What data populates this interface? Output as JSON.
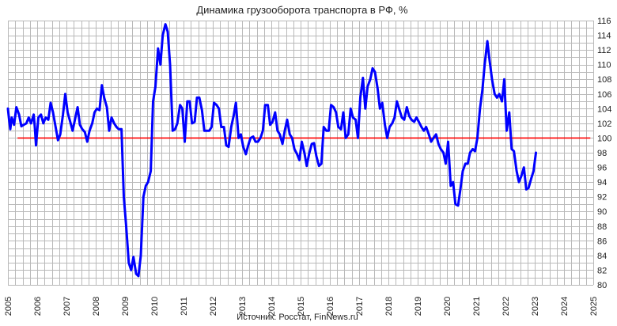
{
  "chart_data": {
    "type": "line",
    "title": "Динамика грузооборота транспорта в РФ, %",
    "source": "Источник: Росстат, FinNews.ru",
    "xlabel": "",
    "ylabel": "",
    "xlim": [
      2005,
      2025
    ],
    "ylim": [
      80,
      116
    ],
    "x_ticks": [
      "2005",
      "2006",
      "2007",
      "2008",
      "2009",
      "2010",
      "2011",
      "2012",
      "2013",
      "2014",
      "2015",
      "2016",
      "2017",
      "2018",
      "2019",
      "2020",
      "2021",
      "2022",
      "2023",
      "2024",
      "2025"
    ],
    "y_ticks": [
      "80",
      "82",
      "84",
      "86",
      "88",
      "90",
      "92",
      "94",
      "96",
      "98",
      "100",
      "102",
      "104",
      "106",
      "108",
      "110",
      "112",
      "114",
      "116"
    ],
    "grid": true,
    "colors": {
      "series": "#0000ff",
      "reference": "#ff0000"
    },
    "reference_line": {
      "y": 100,
      "x_start": 2005.33,
      "x_end": 2024.9
    },
    "series": [
      {
        "points": [
          [
            2005.0,
            104.0
          ],
          [
            2005.04,
            102.5
          ],
          [
            2005.08,
            101.2
          ],
          [
            2005.13,
            102.8
          ],
          [
            2005.21,
            101.8
          ],
          [
            2005.29,
            104.2
          ],
          [
            2005.38,
            103.2
          ],
          [
            2005.46,
            101.6
          ],
          [
            2005.54,
            101.8
          ],
          [
            2005.63,
            102.0
          ],
          [
            2005.71,
            102.8
          ],
          [
            2005.79,
            102.0
          ],
          [
            2005.88,
            103.2
          ],
          [
            2005.92,
            101.5
          ],
          [
            2005.96,
            99.0
          ],
          [
            2006.04,
            102.8
          ],
          [
            2006.13,
            103.2
          ],
          [
            2006.21,
            102.0
          ],
          [
            2006.29,
            102.8
          ],
          [
            2006.38,
            102.5
          ],
          [
            2006.46,
            104.8
          ],
          [
            2006.54,
            103.5
          ],
          [
            2006.63,
            101.5
          ],
          [
            2006.71,
            99.7
          ],
          [
            2006.79,
            100.5
          ],
          [
            2006.88,
            103.2
          ],
          [
            2006.96,
            106.0
          ],
          [
            2007.04,
            103.5
          ],
          [
            2007.13,
            102.2
          ],
          [
            2007.21,
            101.0
          ],
          [
            2007.29,
            102.5
          ],
          [
            2007.38,
            104.2
          ],
          [
            2007.46,
            101.8
          ],
          [
            2007.54,
            101.2
          ],
          [
            2007.63,
            100.8
          ],
          [
            2007.71,
            99.5
          ],
          [
            2007.79,
            101.0
          ],
          [
            2007.88,
            102.0
          ],
          [
            2007.96,
            103.5
          ],
          [
            2008.04,
            104.0
          ],
          [
            2008.13,
            103.8
          ],
          [
            2008.21,
            107.2
          ],
          [
            2008.29,
            105.5
          ],
          [
            2008.38,
            104.2
          ],
          [
            2008.46,
            101.0
          ],
          [
            2008.54,
            102.8
          ],
          [
            2008.63,
            102.0
          ],
          [
            2008.71,
            101.5
          ],
          [
            2008.79,
            101.2
          ],
          [
            2008.88,
            101.2
          ],
          [
            2008.96,
            92.0
          ],
          [
            2009.04,
            88.0
          ],
          [
            2009.13,
            83.0
          ],
          [
            2009.21,
            82.0
          ],
          [
            2009.29,
            83.8
          ],
          [
            2009.38,
            81.5
          ],
          [
            2009.46,
            81.2
          ],
          [
            2009.54,
            84.0
          ],
          [
            2009.63,
            92.0
          ],
          [
            2009.71,
            93.5
          ],
          [
            2009.79,
            94.0
          ],
          [
            2009.88,
            95.5
          ],
          [
            2009.96,
            105.0
          ],
          [
            2010.04,
            107.0
          ],
          [
            2010.13,
            112.2
          ],
          [
            2010.21,
            110.0
          ],
          [
            2010.29,
            114.0
          ],
          [
            2010.38,
            115.5
          ],
          [
            2010.46,
            114.5
          ],
          [
            2010.54,
            110.0
          ],
          [
            2010.63,
            101.0
          ],
          [
            2010.71,
            101.2
          ],
          [
            2010.79,
            102.0
          ],
          [
            2010.88,
            104.5
          ],
          [
            2010.96,
            104.0
          ],
          [
            2011.04,
            99.5
          ],
          [
            2011.13,
            105.0
          ],
          [
            2011.21,
            105.0
          ],
          [
            2011.29,
            102.0
          ],
          [
            2011.38,
            102.2
          ],
          [
            2011.46,
            105.5
          ],
          [
            2011.54,
            105.5
          ],
          [
            2011.63,
            103.8
          ],
          [
            2011.71,
            101.0
          ],
          [
            2011.79,
            101.0
          ],
          [
            2011.88,
            101.0
          ],
          [
            2011.96,
            101.5
          ],
          [
            2012.04,
            104.8
          ],
          [
            2012.13,
            104.5
          ],
          [
            2012.21,
            104.0
          ],
          [
            2012.29,
            101.5
          ],
          [
            2012.38,
            101.5
          ],
          [
            2012.46,
            99.0
          ],
          [
            2012.54,
            98.8
          ],
          [
            2012.63,
            101.5
          ],
          [
            2012.71,
            103.0
          ],
          [
            2012.79,
            104.8
          ],
          [
            2012.88,
            100.0
          ],
          [
            2012.96,
            100.5
          ],
          [
            2013.04,
            98.8
          ],
          [
            2013.13,
            97.8
          ],
          [
            2013.21,
            99.0
          ],
          [
            2013.29,
            100.0
          ],
          [
            2013.38,
            100.2
          ],
          [
            2013.46,
            99.5
          ],
          [
            2013.54,
            99.5
          ],
          [
            2013.63,
            100.0
          ],
          [
            2013.71,
            101.0
          ],
          [
            2013.79,
            104.5
          ],
          [
            2013.88,
            104.5
          ],
          [
            2013.96,
            101.8
          ],
          [
            2014.04,
            102.2
          ],
          [
            2014.13,
            103.5
          ],
          [
            2014.21,
            101.0
          ],
          [
            2014.29,
            100.5
          ],
          [
            2014.38,
            99.2
          ],
          [
            2014.46,
            101.0
          ],
          [
            2014.54,
            102.5
          ],
          [
            2014.63,
            100.5
          ],
          [
            2014.71,
            100.0
          ],
          [
            2014.79,
            98.5
          ],
          [
            2014.88,
            97.8
          ],
          [
            2014.96,
            97.0
          ],
          [
            2015.04,
            99.5
          ],
          [
            2015.13,
            98.0
          ],
          [
            2015.21,
            96.2
          ],
          [
            2015.29,
            97.8
          ],
          [
            2015.38,
            99.2
          ],
          [
            2015.46,
            99.3
          ],
          [
            2015.54,
            97.5
          ],
          [
            2015.63,
            96.2
          ],
          [
            2015.71,
            96.5
          ],
          [
            2015.79,
            101.5
          ],
          [
            2015.88,
            101.0
          ],
          [
            2015.96,
            101.0
          ],
          [
            2016.04,
            104.5
          ],
          [
            2016.13,
            104.2
          ],
          [
            2016.21,
            103.5
          ],
          [
            2016.29,
            101.5
          ],
          [
            2016.38,
            101.2
          ],
          [
            2016.46,
            103.5
          ],
          [
            2016.54,
            100.0
          ],
          [
            2016.63,
            100.5
          ],
          [
            2016.71,
            104.0
          ],
          [
            2016.79,
            102.8
          ],
          [
            2016.88,
            102.5
          ],
          [
            2016.96,
            100.0
          ],
          [
            2017.04,
            105.5
          ],
          [
            2017.13,
            108.2
          ],
          [
            2017.21,
            104.0
          ],
          [
            2017.29,
            107.0
          ],
          [
            2017.38,
            108.0
          ],
          [
            2017.46,
            109.5
          ],
          [
            2017.54,
            109.0
          ],
          [
            2017.63,
            106.8
          ],
          [
            2017.71,
            104.0
          ],
          [
            2017.79,
            104.8
          ],
          [
            2017.88,
            101.8
          ],
          [
            2017.96,
            100.0
          ],
          [
            2018.04,
            101.5
          ],
          [
            2018.13,
            102.0
          ],
          [
            2018.21,
            102.8
          ],
          [
            2018.29,
            105.0
          ],
          [
            2018.38,
            103.8
          ],
          [
            2018.46,
            102.8
          ],
          [
            2018.54,
            102.5
          ],
          [
            2018.63,
            104.2
          ],
          [
            2018.71,
            103.0
          ],
          [
            2018.79,
            102.5
          ],
          [
            2018.88,
            102.2
          ],
          [
            2018.96,
            102.8
          ],
          [
            2019.04,
            102.2
          ],
          [
            2019.13,
            101.5
          ],
          [
            2019.21,
            101.0
          ],
          [
            2019.29,
            101.5
          ],
          [
            2019.38,
            100.5
          ],
          [
            2019.46,
            99.5
          ],
          [
            2019.54,
            100.0
          ],
          [
            2019.63,
            100.5
          ],
          [
            2019.71,
            99.2
          ],
          [
            2019.79,
            98.5
          ],
          [
            2019.88,
            98.0
          ],
          [
            2019.96,
            96.5
          ],
          [
            2020.04,
            99.5
          ],
          [
            2020.13,
            93.5
          ],
          [
            2020.21,
            94.0
          ],
          [
            2020.29,
            91.0
          ],
          [
            2020.38,
            90.8
          ],
          [
            2020.46,
            93.0
          ],
          [
            2020.54,
            95.5
          ],
          [
            2020.63,
            96.5
          ],
          [
            2020.71,
            96.5
          ],
          [
            2020.79,
            98.0
          ],
          [
            2020.88,
            98.5
          ],
          [
            2020.96,
            98.2
          ],
          [
            2021.04,
            100.0
          ],
          [
            2021.13,
            104.0
          ],
          [
            2021.21,
            106.5
          ],
          [
            2021.29,
            110.0
          ],
          [
            2021.38,
            113.2
          ],
          [
            2021.46,
            110.5
          ],
          [
            2021.54,
            108.0
          ],
          [
            2021.63,
            106.0
          ],
          [
            2021.71,
            105.5
          ],
          [
            2021.79,
            106.0
          ],
          [
            2021.88,
            105.0
          ],
          [
            2021.96,
            108.0
          ],
          [
            2022.04,
            101.0
          ],
          [
            2022.13,
            103.5
          ],
          [
            2022.21,
            98.5
          ],
          [
            2022.29,
            98.2
          ],
          [
            2022.38,
            95.5
          ],
          [
            2022.46,
            94.0
          ],
          [
            2022.54,
            94.8
          ],
          [
            2022.63,
            96.0
          ],
          [
            2022.71,
            93.0
          ],
          [
            2022.79,
            93.2
          ],
          [
            2022.88,
            94.5
          ],
          [
            2022.96,
            95.5
          ],
          [
            2023.04,
            98.0
          ]
        ]
      }
    ]
  }
}
